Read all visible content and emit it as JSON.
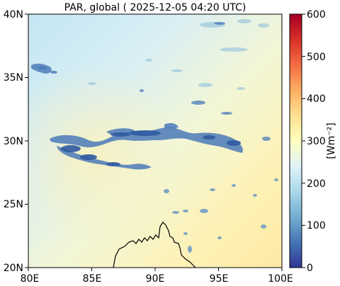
{
  "chart_data": {
    "type": "heatmap",
    "title": "PAR, global ( 2025-12-05 04:20 UTC)",
    "x_ticks": [
      "80E",
      "85E",
      "90E",
      "95E",
      "100E"
    ],
    "y_ticks": [
      "40N",
      "35N",
      "30N",
      "25N",
      "20N"
    ],
    "xlim": [
      80,
      100
    ],
    "ylim": [
      20,
      40
    ],
    "colorbar": {
      "label": "[Wm⁻²]",
      "ticks": [
        "600",
        "500",
        "400",
        "300",
        "200",
        "100",
        "0"
      ],
      "range": [
        0,
        600
      ],
      "colormap": "RdYlBu_r"
    },
    "field_description": {
      "north_value": 240,
      "south_east_value": 330,
      "cloud_value": 40
    }
  }
}
